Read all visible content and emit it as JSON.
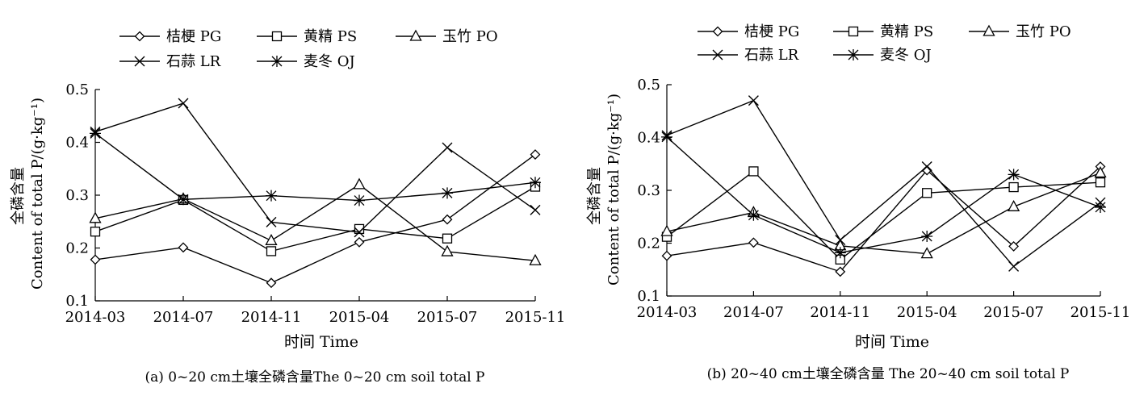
{
  "chart_data": [
    {
      "type": "line",
      "title": "(a) 0~20 cm土壤全磷含量The  0~20 cm soil total P",
      "xlabel": "时间  Time",
      "ylabel_zh": "全磷含量",
      "ylabel_en": "Content of total P/(g·kg⁻¹)",
      "categories": [
        "2014-03",
        "2014-07",
        "2014-11",
        "2015-04",
        "2015-07",
        "2015-11"
      ],
      "ylim": [
        0.1,
        0.5
      ],
      "yticks": [
        "0.1",
        "0.2",
        "0.3",
        "0.4",
        "0.5"
      ],
      "legend_position": "top",
      "series": [
        {
          "name": "桔梗  PG",
          "marker": "diamond",
          "values": [
            0.178,
            0.201,
            0.134,
            0.211,
            0.254,
            0.377
          ]
        },
        {
          "name": "黄精  PS",
          "marker": "square",
          "values": [
            0.231,
            0.291,
            0.194,
            0.236,
            0.218,
            0.316
          ]
        },
        {
          "name": "玉竹  PO",
          "marker": "triangle",
          "values": [
            0.256,
            0.293,
            0.214,
            0.32,
            0.193,
            0.176
          ]
        },
        {
          "name": "石蒜  LR",
          "marker": "x",
          "values": [
            0.42,
            0.474,
            0.249,
            0.23,
            0.39,
            0.272
          ]
        },
        {
          "name": "麦冬  OJ",
          "marker": "star",
          "values": [
            0.417,
            0.292,
            0.299,
            0.29,
            0.304,
            0.324
          ]
        }
      ]
    },
    {
      "type": "line",
      "title": "(b) 20~40 cm土壤全磷含量  The 20~40 cm soil total P",
      "xlabel": "时间  Time",
      "ylabel_zh": "全磷含量",
      "ylabel_en": "Content of total P/(g·kg⁻¹)",
      "categories": [
        "2014-03",
        "2014-07",
        "2014-11",
        "2015-04",
        "2015-07",
        "2015-11"
      ],
      "ylim": [
        0.1,
        0.5
      ],
      "yticks": [
        "0.1",
        "0.2",
        "0.3",
        "0.4",
        "0.5"
      ],
      "legend_position": "top",
      "series": [
        {
          "name": "桔梗  PG",
          "marker": "diamond",
          "values": [
            0.176,
            0.201,
            0.146,
            0.338,
            0.194,
            0.345
          ]
        },
        {
          "name": "黄精  PS",
          "marker": "square",
          "values": [
            0.212,
            0.336,
            0.169,
            0.295,
            0.306,
            0.315
          ]
        },
        {
          "name": "玉竹  PO",
          "marker": "triangle",
          "values": [
            0.222,
            0.258,
            0.195,
            0.18,
            0.269,
            0.333
          ]
        },
        {
          "name": "石蒜  LR",
          "marker": "x",
          "values": [
            0.404,
            0.47,
            0.206,
            0.345,
            0.156,
            0.277
          ]
        },
        {
          "name": "麦冬  OJ",
          "marker": "star",
          "values": [
            0.401,
            0.253,
            0.182,
            0.213,
            0.33,
            0.268
          ]
        }
      ]
    }
  ]
}
